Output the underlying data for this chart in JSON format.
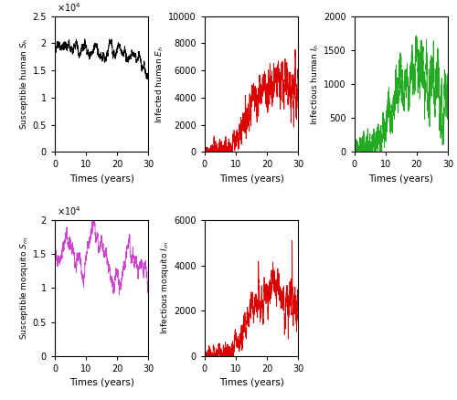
{
  "subplots": [
    {
      "ylabel": "Susceptible human $S_h$",
      "xlabel": "Times (years)",
      "color": "black",
      "ylim": [
        0,
        25000
      ],
      "xlim": [
        0,
        30
      ],
      "yticks": [
        0,
        5000,
        10000,
        15000,
        20000,
        25000
      ],
      "ytick_labels": [
        "0",
        "0.5",
        "1",
        "1.5",
        "2",
        "2.5"
      ],
      "sci_notation": true,
      "sci_exp": 4
    },
    {
      "ylabel": "Infected human $E_h$",
      "xlabel": "Times (years)",
      "color": "#dd0000",
      "ylim": [
        0,
        10000
      ],
      "xlim": [
        0,
        30
      ],
      "yticks": [
        0,
        2000,
        4000,
        6000,
        8000,
        10000
      ],
      "ytick_labels": [
        "0",
        "2000",
        "4000",
        "6000",
        "8000",
        "10000"
      ],
      "sci_notation": false
    },
    {
      "ylabel": "Infectious human $I_h$",
      "xlabel": "Times (years)",
      "color": "#22aa22",
      "ylim": [
        0,
        2000
      ],
      "xlim": [
        0,
        30
      ],
      "yticks": [
        0,
        500,
        1000,
        1500,
        2000
      ],
      "ytick_labels": [
        "0",
        "500",
        "1000",
        "1500",
        "2000"
      ],
      "sci_notation": false
    },
    {
      "ylabel": "Susceptible mosquito $S_m$",
      "xlabel": "Times (years)",
      "color": "#cc44cc",
      "ylim": [
        0,
        20000
      ],
      "xlim": [
        0,
        30
      ],
      "yticks": [
        0,
        5000,
        10000,
        15000,
        20000
      ],
      "ytick_labels": [
        "0",
        "0.5",
        "1",
        "1.5",
        "2"
      ],
      "sci_notation": true,
      "sci_exp": 4
    },
    {
      "ylabel": "Infectious mosquito $I_m$",
      "xlabel": "Times (years)",
      "color": "#dd0000",
      "ylim": [
        0,
        6000
      ],
      "xlim": [
        0,
        30
      ],
      "yticks": [
        0,
        2000,
        4000,
        6000
      ],
      "ytick_labels": [
        "0",
        "2000",
        "4000",
        "6000"
      ],
      "sci_notation": false
    }
  ],
  "xticks": [
    0,
    10,
    20,
    30
  ],
  "background_color": "#ffffff",
  "n_steps": 3000
}
